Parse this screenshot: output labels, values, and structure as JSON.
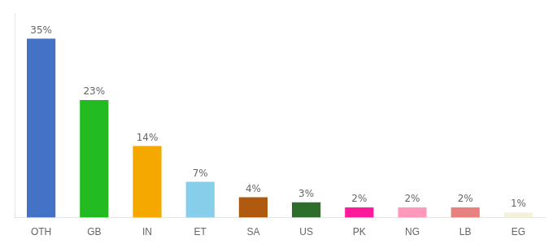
{
  "chart_data": {
    "type": "bar",
    "categories": [
      "OTH",
      "GB",
      "IN",
      "ET",
      "SA",
      "US",
      "PK",
      "NG",
      "LB",
      "EG"
    ],
    "values": [
      35,
      23,
      14,
      7,
      4,
      3,
      2,
      2,
      2,
      1
    ],
    "value_labels": [
      "35%",
      "23%",
      "14%",
      "7%",
      "4%",
      "3%",
      "2%",
      "2%",
      "2%",
      "1%"
    ],
    "colors": [
      "#4472c4",
      "#22bb22",
      "#f5a800",
      "#87ceeb",
      "#b05a10",
      "#2d6e2d",
      "#ff1a99",
      "#ff99bb",
      "#e88080",
      "#f5f0dc"
    ],
    "ylim": [
      0,
      40
    ],
    "grid": false,
    "data_labels": true,
    "tick_labels": "x"
  }
}
